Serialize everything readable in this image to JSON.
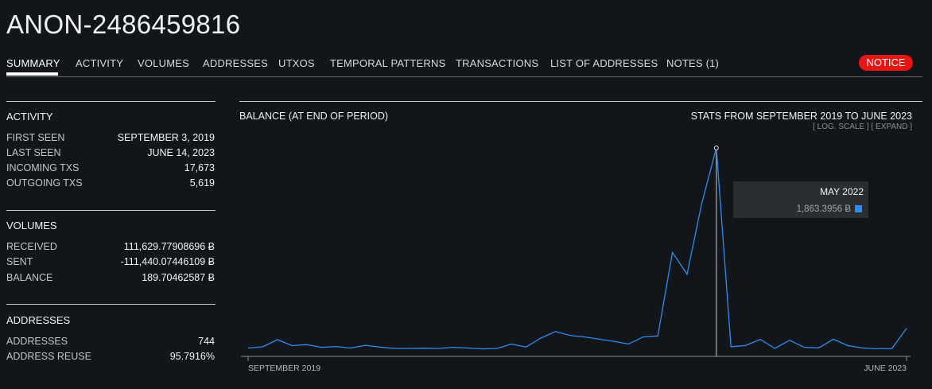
{
  "title": "ANON-2486459816",
  "tabs": [
    {
      "label": "SUMMARY"
    },
    {
      "label": "ACTIVITY"
    },
    {
      "label": "VOLUMES"
    },
    {
      "label": "ADDRESSES"
    },
    {
      "label": "UTXOS"
    },
    {
      "label": "TEMPORAL PATTERNS"
    },
    {
      "label": "TRANSACTIONS"
    },
    {
      "label": "LIST OF ADDRESSES"
    },
    {
      "label": "NOTES (1)"
    }
  ],
  "notice_label": "NOTICE",
  "colors": {
    "accent_notice": "#e81515",
    "series": "#2d8cf0",
    "background": "#12161a"
  },
  "sidebar": {
    "activity": {
      "title": "ACTIVITY",
      "rows": [
        {
          "label": "FIRST SEEN",
          "value": "SEPTEMBER 3, 2019"
        },
        {
          "label": "LAST SEEN",
          "value": "JUNE 14, 2023"
        },
        {
          "label": "INCOMING TXS",
          "value": "17,673"
        },
        {
          "label": "OUTGOING TXS",
          "value": "5,619"
        }
      ]
    },
    "volumes": {
      "title": "VOLUMES",
      "rows": [
        {
          "label": "RECEIVED",
          "value": "111,629.77908696 Ƀ"
        },
        {
          "label": "SENT",
          "value": "-111,440.07446109 Ƀ"
        },
        {
          "label": "BALANCE",
          "value": "189.70462587 Ƀ"
        }
      ]
    },
    "addresses": {
      "title": "ADDRESSES",
      "rows": [
        {
          "label": "ADDRESSES",
          "value": "744"
        },
        {
          "label": "ADDRESS REUSE",
          "value": "95.7916%"
        }
      ]
    }
  },
  "chart": {
    "title": "BALANCE (AT END OF PERIOD)",
    "stats": "STATS FROM SEPTEMBER 2019 TO JUNE 2023",
    "log_scale_link": "[ LOG. SCALE ]",
    "expand_link": "[ EXPAND ]",
    "tooltip": {
      "date": "MAY 2022",
      "value": "1,863.3956 Ƀ"
    }
  },
  "chart_data": {
    "type": "line",
    "x_tick_labels": [
      "SEPTEMBER 2019",
      "JUNE 2023"
    ],
    "series": [
      {
        "values": [
          18,
          29,
          95,
          40,
          50,
          25,
          32,
          18,
          43,
          27,
          15,
          15,
          17,
          15,
          25,
          18,
          10,
          15,
          55,
          28,
          110,
          170,
          135,
          120,
          100,
          80,
          55,
          120,
          130,
          900,
          700,
          1350,
          1863,
          30,
          42,
          98,
          15,
          90,
          25,
          20,
          100,
          40,
          18,
          12,
          14,
          200
        ]
      }
    ],
    "highlighted_point": {
      "index": 32,
      "date": "MAY 2022",
      "value": 1863.3956
    },
    "grid": false,
    "legend": "none"
  }
}
